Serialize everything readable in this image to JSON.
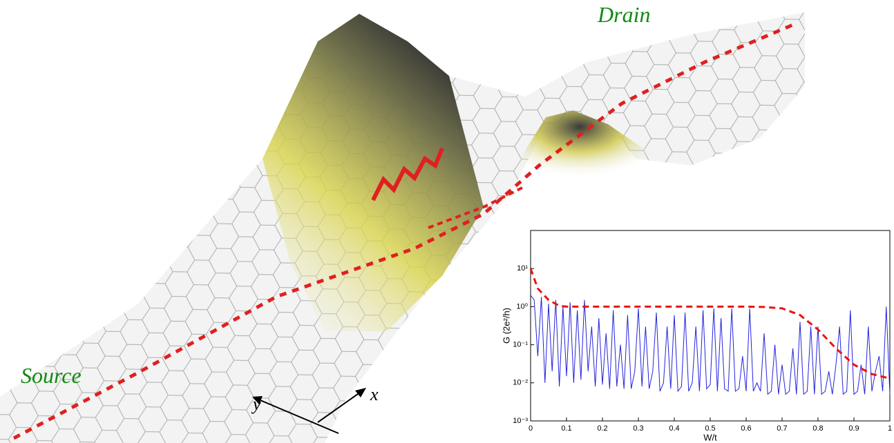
{
  "chart_data": {
    "type": "line",
    "ylog": true,
    "x_label": "W/t",
    "y_label": "G (2e²/h)",
    "xlim": [
      0,
      1
    ],
    "xticks": [
      0,
      0.1,
      0.2,
      0.3,
      0.4,
      0.5,
      0.6,
      0.7,
      0.8,
      0.9,
      1
    ],
    "ylim": [
      0.001,
      100
    ],
    "yticks": [
      {
        "value": 0.001,
        "label": "10⁻³"
      },
      {
        "value": 0.01,
        "label": "10⁻²"
      },
      {
        "value": 0.1,
        "label": "10⁻¹"
      },
      {
        "value": 1,
        "label": "10⁰"
      },
      {
        "value": 10,
        "label": "10¹"
      }
    ],
    "series": [
      {
        "color": "#2222dd",
        "dash": false,
        "x": [
          0,
          0.01,
          0.02,
          0.03,
          0.04,
          0.05,
          0.06,
          0.07,
          0.08,
          0.09,
          0.1,
          0.11,
          0.12,
          0.13,
          0.14,
          0.15,
          0.16,
          0.17,
          0.18,
          0.19,
          0.2,
          0.21,
          0.22,
          0.23,
          0.24,
          0.25,
          0.26,
          0.27,
          0.28,
          0.29,
          0.3,
          0.31,
          0.32,
          0.33,
          0.34,
          0.35,
          0.36,
          0.37,
          0.38,
          0.39,
          0.4,
          0.41,
          0.42,
          0.43,
          0.44,
          0.45,
          0.46,
          0.47,
          0.48,
          0.49,
          0.5,
          0.51,
          0.52,
          0.53,
          0.54,
          0.55,
          0.56,
          0.57,
          0.58,
          0.59,
          0.6,
          0.61,
          0.62,
          0.63,
          0.64,
          0.65,
          0.66,
          0.67,
          0.68,
          0.69,
          0.7,
          0.71,
          0.72,
          0.73,
          0.74,
          0.75,
          0.76,
          0.77,
          0.78,
          0.79,
          0.8,
          0.81,
          0.82,
          0.83,
          0.84,
          0.85,
          0.86,
          0.87,
          0.88,
          0.89,
          0.9,
          0.91,
          0.92,
          0.93,
          0.94,
          0.95,
          0.96,
          0.97,
          0.98,
          0.99,
          1
        ],
        "values": [
          2,
          1.5,
          0.05,
          1.8,
          0.01,
          1.2,
          0.02,
          1.5,
          0.008,
          1.0,
          0.015,
          1.3,
          0.01,
          0.8,
          0.012,
          1.5,
          0.02,
          0.3,
          0.008,
          0.5,
          0.009,
          0.2,
          0.007,
          0.8,
          0.008,
          0.1,
          0.007,
          0.6,
          0.007,
          0.02,
          0.9,
          0.008,
          0.3,
          0.007,
          0.02,
          0.7,
          0.006,
          0.01,
          0.3,
          0.007,
          0.6,
          0.006,
          0.008,
          0.7,
          0.006,
          0.01,
          0.3,
          0.006,
          0.8,
          0.007,
          0.009,
          0.9,
          0.006,
          0.5,
          0.007,
          0.006,
          0.9,
          0.006,
          0.007,
          0.05,
          0.006,
          0.9,
          0.006,
          0.01,
          0.006,
          0.2,
          0.005,
          0.006,
          0.1,
          0.005,
          0.03,
          0.005,
          0.006,
          0.08,
          0.005,
          0.4,
          0.005,
          0.006,
          0.3,
          0.005,
          0.3,
          0.005,
          0.006,
          0.02,
          0.005,
          0.03,
          0.3,
          0.005,
          0.006,
          0.8,
          0.005,
          0.006,
          0.03,
          0.005,
          0.3,
          0.006,
          0.02,
          0.05,
          0.006,
          1.0,
          0.005
        ]
      },
      {
        "color": "#ee1111",
        "dash": true,
        "x": [
          0,
          0.02,
          0.05,
          0.08,
          0.1,
          0.2,
          0.3,
          0.4,
          0.5,
          0.6,
          0.65,
          0.7,
          0.75,
          0.8,
          0.85,
          0.9,
          0.95,
          1
        ],
        "values": [
          10,
          3,
          1.5,
          1.05,
          1,
          1,
          1,
          1,
          1,
          1,
          0.98,
          0.9,
          0.6,
          0.25,
          0.08,
          0.03,
          0.017,
          0.013
        ]
      }
    ],
    "annotations": [
      "Source",
      "Drain",
      "x",
      "y"
    ]
  }
}
